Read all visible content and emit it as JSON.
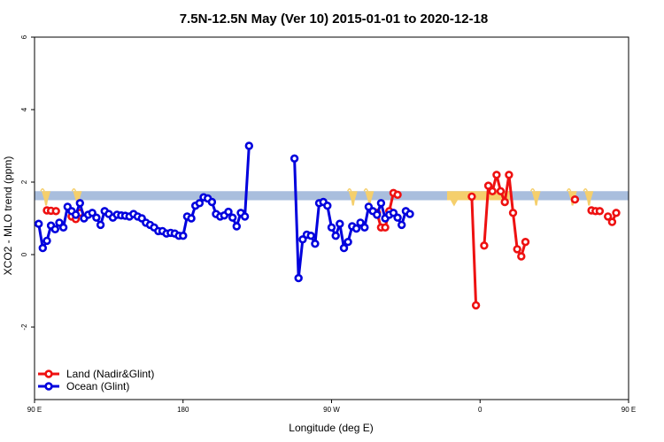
{
  "chart_data": {
    "type": "line",
    "title": "7.5N-12.5N May (Ver 10)   2015-01-01 to 2020-12-18",
    "xlabel": "Longitude (deg E)",
    "ylabel": "XCO2 - MLO trend (ppm)",
    "xlim": [
      90,
      450
    ],
    "ylim": [
      -4,
      6
    ],
    "x_ticks": [
      {
        "value": 90,
        "label": "90 E"
      },
      {
        "value": 180,
        "label": "180"
      },
      {
        "value": 270,
        "label": "90 W"
      },
      {
        "value": 360,
        "label": "0"
      },
      {
        "value": 450,
        "label": "90 E"
      },
      {
        "value": 540,
        "label": "180"
      }
    ],
    "y_ticks": [
      {
        "value": -2,
        "label": "-2"
      },
      {
        "value": 0,
        "label": "0"
      },
      {
        "value": 2,
        "label": "2"
      },
      {
        "value": 4,
        "label": "4"
      },
      {
        "value": 6,
        "label": "6"
      }
    ],
    "band": {
      "y_min": 1.5,
      "y_max": 1.75,
      "color": "#a9bedd"
    },
    "land_patches": [
      {
        "x": 97,
        "color": "#f5cf6c"
      },
      {
        "x": 116,
        "color": "#f5cf6c"
      },
      {
        "x": 283,
        "color": "#f5cf6c"
      },
      {
        "x": 293,
        "color": "#f5cf6c"
      },
      {
        "x": 340,
        "x_end": 378,
        "color": "#f5cf6c"
      },
      {
        "x": 394,
        "color": "#f5cf6c"
      },
      {
        "x": 416,
        "color": "#f5cf6c"
      },
      {
        "x": 426,
        "color": "#f5cf6c"
      }
    ],
    "legend_position": "bottom-left",
    "series": [
      {
        "name": "Land (Nadir&Glint)",
        "color": "#ee1111",
        "segments": [
          [
            [
              97.5,
              1.22
            ],
            [
              100,
              1.21
            ],
            [
              103,
              1.2
            ]
          ],
          [
            [
              112.5,
              1.05
            ],
            [
              115,
              0.98
            ],
            [
              117.5,
              1.15
            ]
          ],
          [
            [
              297.5,
              1.15
            ],
            [
              300,
              0.75
            ],
            [
              302.5,
              0.75
            ],
            [
              305,
              1.2
            ],
            [
              307.5,
              1.7
            ],
            [
              310,
              1.65
            ]
          ],
          [
            [
              355,
              1.6
            ],
            [
              357.5,
              -1.4
            ]
          ],
          [
            [
              362.5,
              0.25
            ],
            [
              365,
              1.9
            ],
            [
              367.5,
              1.75
            ],
            [
              370,
              2.2
            ],
            [
              372.5,
              1.75
            ],
            [
              375,
              1.45
            ],
            [
              377.5,
              2.2
            ],
            [
              380,
              1.15
            ],
            [
              382.5,
              0.15
            ],
            [
              385,
              -0.05
            ],
            [
              387.5,
              0.35
            ]
          ],
          [
            [
              417.5,
              1.52
            ]
          ],
          [
            [
              427.5,
              1.22
            ],
            [
              430,
              1.2
            ],
            [
              432.5,
              1.2
            ]
          ],
          [
            [
              437.5,
              1.05
            ],
            [
              440,
              0.9
            ],
            [
              442.5,
              1.15
            ]
          ]
        ]
      },
      {
        "name": "Ocean (Glint)",
        "color": "#0000dd",
        "segments": [
          [
            [
              92.5,
              0.85
            ],
            [
              95,
              0.18
            ],
            [
              97.5,
              0.38
            ],
            [
              100,
              0.8
            ],
            [
              102.5,
              0.7
            ],
            [
              105,
              0.88
            ],
            [
              107.5,
              0.75
            ],
            [
              110,
              1.32
            ],
            [
              112.5,
              1.2
            ],
            [
              115,
              1.1
            ],
            [
              117.5,
              1.42
            ],
            [
              120,
              1.0
            ],
            [
              122.5,
              1.1
            ],
            [
              125,
              1.15
            ],
            [
              127.5,
              1.02
            ],
            [
              130,
              0.82
            ],
            [
              132.5,
              1.2
            ],
            [
              135,
              1.12
            ],
            [
              137.5,
              1.02
            ],
            [
              140,
              1.1
            ],
            [
              142.5,
              1.08
            ],
            [
              145,
              1.07
            ],
            [
              147.5,
              1.05
            ],
            [
              150,
              1.12
            ],
            [
              152.5,
              1.05
            ],
            [
              155,
              1.0
            ],
            [
              157.5,
              0.88
            ],
            [
              160,
              0.82
            ],
            [
              162.5,
              0.75
            ],
            [
              165,
              0.65
            ],
            [
              167.5,
              0.65
            ],
            [
              170,
              0.58
            ],
            [
              172.5,
              0.6
            ],
            [
              175,
              0.58
            ],
            [
              177.5,
              0.52
            ],
            [
              180,
              0.52
            ],
            [
              182.5,
              1.05
            ],
            [
              185,
              1.0
            ],
            [
              187.5,
              1.35
            ],
            [
              190,
              1.42
            ],
            [
              192.5,
              1.58
            ],
            [
              195,
              1.55
            ],
            [
              197.5,
              1.45
            ],
            [
              200,
              1.12
            ],
            [
              202.5,
              1.05
            ],
            [
              205,
              1.08
            ],
            [
              207.5,
              1.18
            ],
            [
              210,
              1.02
            ],
            [
              212.5,
              0.78
            ],
            [
              215,
              1.15
            ],
            [
              217.5,
              1.05
            ],
            [
              220,
              3.0
            ]
          ],
          [
            [
              247.5,
              2.65
            ],
            [
              250,
              -0.65
            ],
            [
              252.5,
              0.42
            ],
            [
              255,
              0.55
            ],
            [
              257.5,
              0.52
            ],
            [
              260,
              0.3
            ],
            [
              262.5,
              1.42
            ],
            [
              265,
              1.45
            ],
            [
              267.5,
              1.35
            ],
            [
              270,
              0.75
            ],
            [
              272.5,
              0.52
            ],
            [
              275,
              0.85
            ],
            [
              277.5,
              0.18
            ],
            [
              280,
              0.35
            ],
            [
              282.5,
              0.78
            ],
            [
              285,
              0.72
            ],
            [
              287.5,
              0.88
            ],
            [
              290,
              0.75
            ],
            [
              292.5,
              1.32
            ],
            [
              295,
              1.2
            ],
            [
              297.5,
              1.1
            ],
            [
              300,
              1.42
            ],
            [
              302.5,
              1.0
            ],
            [
              305,
              1.1
            ],
            [
              307.5,
              1.15
            ],
            [
              310,
              1.02
            ],
            [
              312.5,
              0.82
            ],
            [
              315,
              1.2
            ],
            [
              317.5,
              1.12
            ]
          ]
        ]
      }
    ]
  }
}
